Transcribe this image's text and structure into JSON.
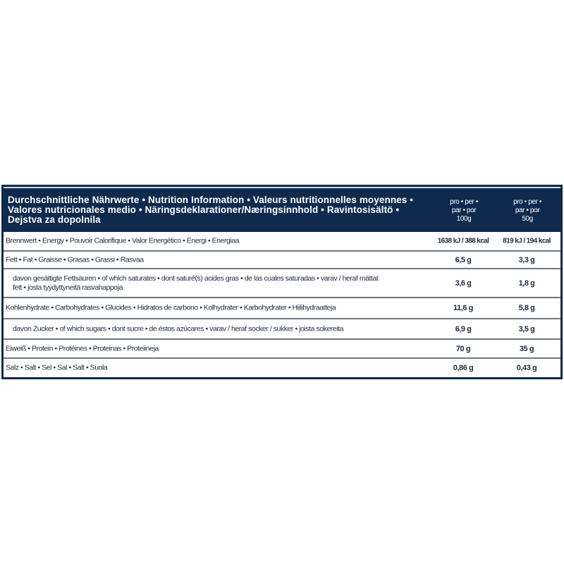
{
  "header": {
    "title": "Durchschnittliche Nährwerte • Nutrition Information • Valeurs nutritionnelles moyennes • Valores nutricionales medio • Näringsdeklarationer/Næringsinnhold • Ravintosisältö • Dejstva za dopolnila",
    "col1": [
      "pro • per •",
      "par • por",
      "100g"
    ],
    "col2": [
      "pro • per •",
      "par • por",
      "50g"
    ]
  },
  "colors": {
    "panel": "#0f2a4d",
    "row_divider": "#6e7681",
    "text": "#1c2a3e"
  },
  "rows": [
    {
      "label": "Brennwert • Energy • Pouvoir Calorifique • Valor Energético • Energi • Energiaa",
      "v100": "1638 kJ / 388 kcal",
      "v50": "819 kJ / 194 kcal"
    },
    {
      "label": "Fett • Fat • Graisse • Grasas • Grassi • Rasvaa",
      "v100": "6,5 g",
      "v50": "3,3 g"
    },
    {
      "label": "davon gesättigte Fettsäuren • of which saturates • dont saturé(s) acides gras • de las cuales saturadas • varav / heraf mättat fett • josta tyydyttyneitä rasvahappoja",
      "v100": "3,6 g",
      "v50": "1,8 g"
    },
    {
      "label": "Kohlenhydrate • Carbohydrates • Glucides • Hidratos de carbono • Kolhydrater • Karbohydrater • Hiilihydraatteja",
      "v100": "11,6 g",
      "v50": "5,8 g"
    },
    {
      "label": "davon Zucker • of which sugars • dont sucre • de éstos azúcares • varav / heraf socker / sukker • joista sokereita",
      "v100": "6,9 g",
      "v50": "3,5 g"
    },
    {
      "label": "Eiweiß • Protein • Protéines • Proteinas • Proteiineja",
      "v100": "70 g",
      "v50": "35 g"
    },
    {
      "label": "Salz • Salt • Sel • Sal • Salt • Suola",
      "v100": "0,86 g",
      "v50": "0,43 g"
    }
  ]
}
